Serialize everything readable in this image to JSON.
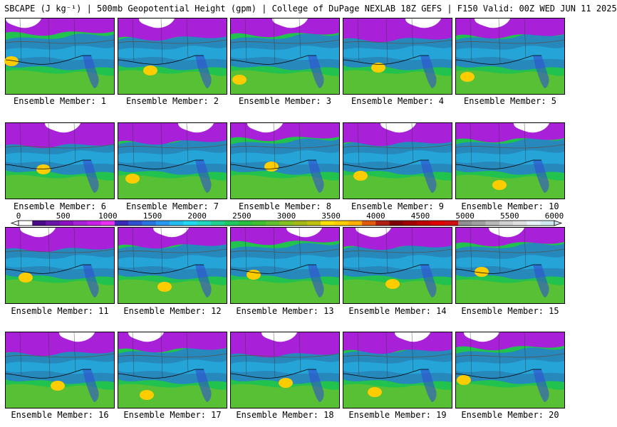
{
  "title": "SBCAPE (J kg⁻¹) | 500mb Geopotential Height (gpm) | College of DuPage NEXLAB 18Z GEFS | F150 Valid: 00Z WED JUN 11 2025",
  "colorbar": {
    "ticks": [
      "0",
      "500",
      "1000",
      "1500",
      "2000",
      "2500",
      "3000",
      "3500",
      "4000",
      "4500",
      "5000",
      "5500",
      "6000"
    ],
    "colors": [
      "#ffffff",
      "#4a0a8a",
      "#6a15a8",
      "#8a10c0",
      "#a820d8",
      "#c820e8",
      "#e830f0",
      "#3a2ab8",
      "#3050d0",
      "#2a74e0",
      "#2898f0",
      "#24bcf0",
      "#20d8f0",
      "#20d8c0",
      "#20d090",
      "#20c860",
      "#28c040",
      "#40c030",
      "#60c030",
      "#84c020",
      "#a4b818",
      "#c0c010",
      "#ffe000",
      "#ffcc00",
      "#ffb000",
      "#e05a10",
      "#b02010",
      "#800008",
      "#a00000",
      "#c00000",
      "#e00000",
      "#d01010",
      "#909090",
      "#a0a0a0",
      "#b8b8b8",
      "#d0d0d0",
      "#e0e0e0",
      "#e8f4f8",
      "#d0e8f0"
    ]
  },
  "members": [
    {
      "label": "Ensemble Member: 1"
    },
    {
      "label": "Ensemble Member: 2"
    },
    {
      "label": "Ensemble Member: 3"
    },
    {
      "label": "Ensemble Member: 4"
    },
    {
      "label": "Ensemble Member: 5"
    },
    {
      "label": "Ensemble Member: 6"
    },
    {
      "label": "Ensemble Member: 7"
    },
    {
      "label": "Ensemble Member: 8"
    },
    {
      "label": "Ensemble Member: 9"
    },
    {
      "label": "Ensemble Member: 10"
    },
    {
      "label": "Ensemble Member: 11"
    },
    {
      "label": "Ensemble Member: 12"
    },
    {
      "label": "Ensemble Member: 13"
    },
    {
      "label": "Ensemble Member: 14"
    },
    {
      "label": "Ensemble Member: 15"
    },
    {
      "label": "Ensemble Member: 16"
    },
    {
      "label": "Ensemble Member: 17"
    },
    {
      "label": "Ensemble Member: 18"
    },
    {
      "label": "Ensemble Member: 19"
    },
    {
      "label": "Ensemble Member: 20"
    }
  ]
}
